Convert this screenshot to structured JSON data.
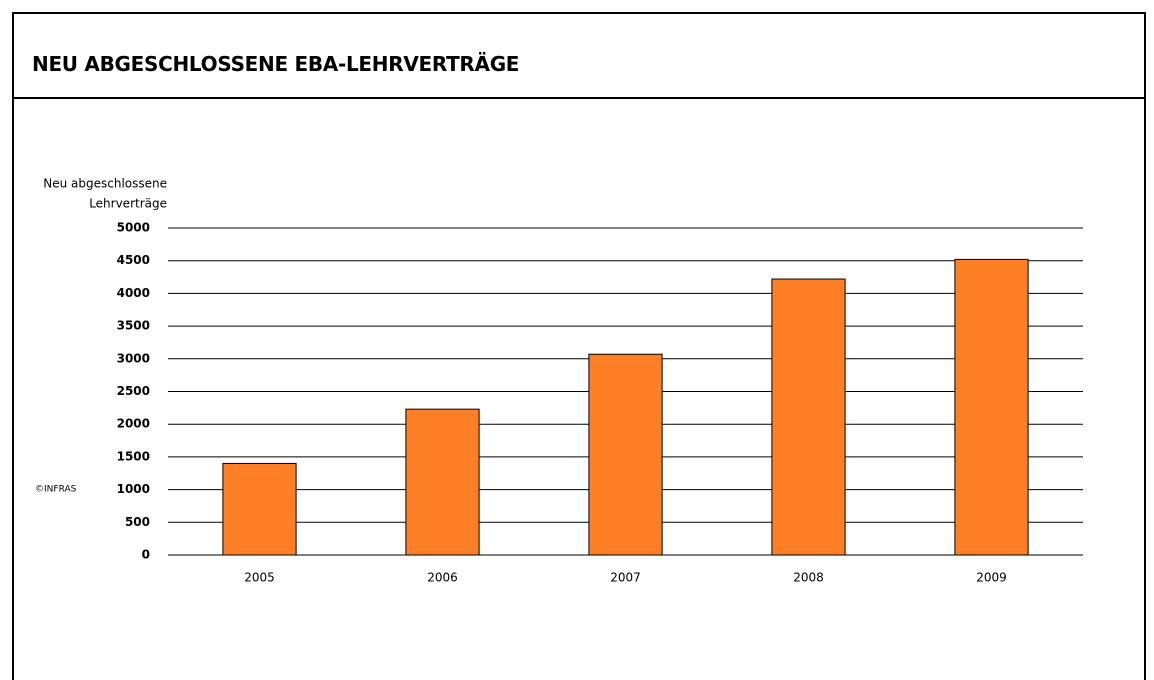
{
  "chart_data": {
    "type": "bar",
    "title": "NEU ABGESCHLOSSENE EBA-LEHRVERTRÄGE",
    "ylabel": [
      "Neu abgeschlossene",
      "Lehrverträge"
    ],
    "annotation": "©INFRAS",
    "categories": [
      "2005",
      "2006",
      "2007",
      "2008",
      "2009"
    ],
    "values": [
      1400,
      2230,
      3070,
      4220,
      4520
    ],
    "color": "#ff7f27",
    "ylim": [
      0,
      5000
    ],
    "yticks": [
      0,
      500,
      1000,
      1500,
      2000,
      2500,
      3000,
      3500,
      4000,
      4500,
      5000
    ],
    "grid": true
  }
}
